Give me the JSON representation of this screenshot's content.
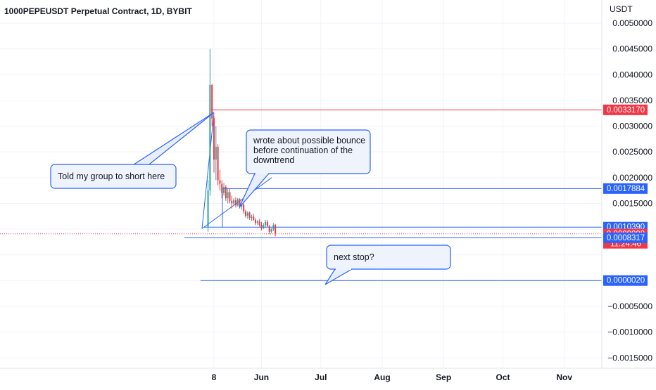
{
  "header": {
    "title": "1000PEPEUSDT Perpetual Contract, 1D, BYBIT"
  },
  "price_axis": {
    "unit_label": "USDT",
    "ticks": [
      {
        "value": 0.005,
        "label": "0.0050000"
      },
      {
        "value": 0.0045,
        "label": "0.0045000"
      },
      {
        "value": 0.004,
        "label": "0.0040000"
      },
      {
        "value": 0.0035,
        "label": "0.0035000"
      },
      {
        "value": 0.003,
        "label": "0.0030000"
      },
      {
        "value": 0.0025,
        "label": "0.0025000"
      },
      {
        "value": 0.002,
        "label": "0.0020000"
      },
      {
        "value": 0.0015,
        "label": "0.0015000"
      },
      {
        "value": -0.0005,
        "label": "−0.0005000"
      },
      {
        "value": -0.001,
        "label": "−0.0010000"
      },
      {
        "value": -0.0015,
        "label": "−0.0015000"
      }
    ]
  },
  "time_axis": {
    "ticks": [
      {
        "date": "2023-05-08",
        "label": "8"
      },
      {
        "date": "2023-06-01",
        "label": "Jun"
      },
      {
        "date": "2023-07-01",
        "label": "Jul"
      },
      {
        "date": "2023-08-01",
        "label": "Aug"
      },
      {
        "date": "2023-09-01",
        "label": "Sep"
      },
      {
        "date": "2023-10-01",
        "label": "Oct"
      },
      {
        "date": "2023-11-01",
        "label": "Nov"
      }
    ]
  },
  "price_tags": [
    {
      "value": 0.003317,
      "label": "0.0033170",
      "color": "#f23645"
    },
    {
      "value": 0.0017884,
      "label": "0.0017884",
      "color": "#2962ff"
    },
    {
      "value": 0.001039,
      "label": "0.0010390",
      "color": "#2962ff"
    },
    {
      "value": 0.0009098,
      "label": "0.0009098",
      "sublabel": "11:24:46",
      "color": "#f23645"
    },
    {
      "value": 0.0008317,
      "label": "0.0008317",
      "color": "#2962ff"
    },
    {
      "value": 2e-06,
      "label": "0.0000020",
      "color": "#2962ff"
    }
  ],
  "annotations": [
    {
      "text": "Told my group to short here"
    },
    {
      "text": "wrote about possible bounce\nbefore continuation of the\ndowntrend"
    },
    {
      "text": "next stop?"
    }
  ],
  "colors": {
    "up": "#26a69a",
    "down": "#f23645",
    "drawing_blue": "#2962ff",
    "grid": "#f0f3fa",
    "text": "#131722"
  },
  "chart_data": {
    "type": "candlestick",
    "title": "1000PEPEUSDT Perpetual Contract, 1D, BYBIT",
    "ylabel": "USDT",
    "ylim": [
      -0.0016,
      0.0052
    ],
    "xlim": [
      "2023-05-01",
      "2023-11-20"
    ],
    "grid": true,
    "candles": [
      {
        "date": "2023-05-05",
        "open": 0.00105,
        "high": 0.00195,
        "low": 0.00095,
        "close": 0.00175
      },
      {
        "date": "2023-05-06",
        "open": 0.00175,
        "high": 0.0045,
        "low": 0.00165,
        "close": 0.0038
      },
      {
        "date": "2023-05-07",
        "open": 0.0038,
        "high": 0.00382,
        "low": 0.003,
        "close": 0.00315
      },
      {
        "date": "2023-05-08",
        "open": 0.00315,
        "high": 0.0032,
        "low": 0.0021,
        "close": 0.00235
      },
      {
        "date": "2023-05-09",
        "open": 0.00235,
        "high": 0.003,
        "low": 0.00195,
        "close": 0.0026
      },
      {
        "date": "2023-05-10",
        "open": 0.0026,
        "high": 0.00265,
        "low": 0.00185,
        "close": 0.00195
      },
      {
        "date": "2023-05-11",
        "open": 0.00195,
        "high": 0.00215,
        "low": 0.00175,
        "close": 0.00188
      },
      {
        "date": "2023-05-12",
        "open": 0.00188,
        "high": 0.00195,
        "low": 0.0016,
        "close": 0.0017
      },
      {
        "date": "2023-05-13",
        "open": 0.0017,
        "high": 0.0019,
        "low": 0.00165,
        "close": 0.00182
      },
      {
        "date": "2023-05-14",
        "open": 0.00182,
        "high": 0.00186,
        "low": 0.00155,
        "close": 0.0016
      },
      {
        "date": "2023-05-15",
        "open": 0.0016,
        "high": 0.0018,
        "low": 0.0015,
        "close": 0.00172
      },
      {
        "date": "2023-05-16",
        "open": 0.00172,
        "high": 0.00178,
        "low": 0.0015,
        "close": 0.00155
      },
      {
        "date": "2023-05-17",
        "open": 0.00155,
        "high": 0.00165,
        "low": 0.0014,
        "close": 0.0015
      },
      {
        "date": "2023-05-18",
        "open": 0.0015,
        "high": 0.0016,
        "low": 0.00145,
        "close": 0.00156
      },
      {
        "date": "2023-05-19",
        "open": 0.00156,
        "high": 0.00162,
        "low": 0.00142,
        "close": 0.00146
      },
      {
        "date": "2023-05-20",
        "open": 0.00146,
        "high": 0.0016,
        "low": 0.00144,
        "close": 0.00158
      },
      {
        "date": "2023-05-21",
        "open": 0.00158,
        "high": 0.0016,
        "low": 0.0014,
        "close": 0.00144
      },
      {
        "date": "2023-05-22",
        "open": 0.00144,
        "high": 0.00152,
        "low": 0.00138,
        "close": 0.00148
      },
      {
        "date": "2023-05-23",
        "open": 0.00148,
        "high": 0.0015,
        "low": 0.0013,
        "close": 0.00135
      },
      {
        "date": "2023-05-24",
        "open": 0.00135,
        "high": 0.00138,
        "low": 0.00122,
        "close": 0.00126
      },
      {
        "date": "2023-05-25",
        "open": 0.00126,
        "high": 0.00135,
        "low": 0.0012,
        "close": 0.00132
      },
      {
        "date": "2023-05-26",
        "open": 0.00132,
        "high": 0.00134,
        "low": 0.00118,
        "close": 0.00122
      },
      {
        "date": "2023-05-27",
        "open": 0.00122,
        "high": 0.00128,
        "low": 0.00116,
        "close": 0.00124
      },
      {
        "date": "2023-05-28",
        "open": 0.00124,
        "high": 0.0013,
        "low": 0.00116,
        "close": 0.00118
      },
      {
        "date": "2023-05-29",
        "open": 0.00118,
        "high": 0.00122,
        "low": 0.00108,
        "close": 0.00112
      },
      {
        "date": "2023-05-30",
        "open": 0.00112,
        "high": 0.00118,
        "low": 0.00108,
        "close": 0.00115
      },
      {
        "date": "2023-05-31",
        "open": 0.00115,
        "high": 0.0012,
        "low": 0.00105,
        "close": 0.00108
      },
      {
        "date": "2023-06-01",
        "open": 0.00108,
        "high": 0.00114,
        "low": 0.00098,
        "close": 0.00102
      },
      {
        "date": "2023-06-02",
        "open": 0.00102,
        "high": 0.00112,
        "low": 0.001,
        "close": 0.00108
      },
      {
        "date": "2023-06-03",
        "open": 0.00108,
        "high": 0.00118,
        "low": 0.00102,
        "close": 0.00114
      },
      {
        "date": "2023-06-04",
        "open": 0.00114,
        "high": 0.00118,
        "low": 0.00104,
        "close": 0.00106
      },
      {
        "date": "2023-06-05",
        "open": 0.00106,
        "high": 0.00108,
        "low": 0.0009,
        "close": 0.00095
      },
      {
        "date": "2023-06-06",
        "open": 0.00095,
        "high": 0.00102,
        "low": 0.00092,
        "close": 0.001
      },
      {
        "date": "2023-06-07",
        "open": 0.001,
        "high": 0.00112,
        "low": 0.00096,
        "close": 0.00108
      },
      {
        "date": "2023-06-08",
        "open": 0.00108,
        "high": 0.0011,
        "low": 0.00086,
        "close": 0.0009098
      }
    ],
    "horizontal_levels": [
      {
        "value": 0.003317,
        "color": "#f23645"
      },
      {
        "value": 0.0017884,
        "color": "#2962ff"
      },
      {
        "value": 0.001039,
        "color": "#2962ff"
      },
      {
        "value": 0.0008317,
        "color": "#2962ff"
      },
      {
        "value": 2e-06,
        "color": "#2962ff"
      }
    ],
    "last_price": 0.0009098
  }
}
